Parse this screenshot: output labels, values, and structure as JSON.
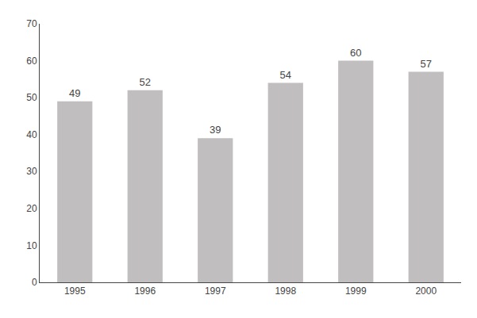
{
  "chart_data": {
    "type": "bar",
    "categories": [
      "1995",
      "1996",
      "1997",
      "1998",
      "1999",
      "2000"
    ],
    "values": [
      49,
      52,
      39,
      54,
      60,
      57
    ],
    "color": "#C0BEBF",
    "ylim": [
      0,
      70
    ],
    "yticks": [
      0,
      10,
      20,
      30,
      40,
      50,
      60,
      70
    ],
    "grid": false,
    "data_labels": true
  }
}
